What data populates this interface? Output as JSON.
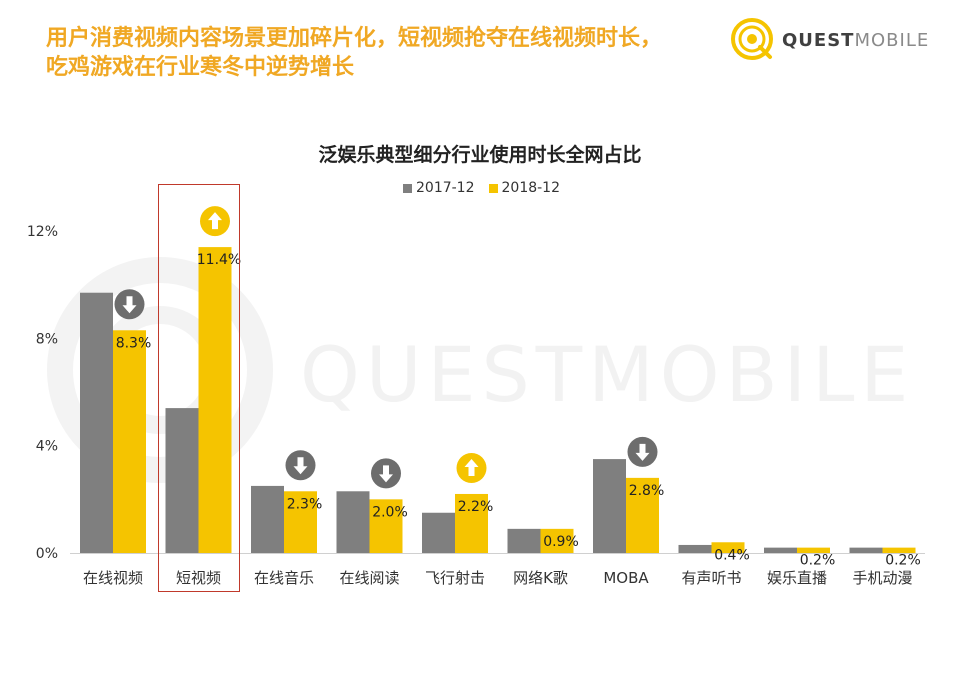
{
  "headline": {
    "line1": "用户消费视频内容场景更加碎片化，短视频抢夺在线视频时长，",
    "line2": "吃鸡游戏在行业寒冬中逆势增长"
  },
  "logo": {
    "part1": "QUEST",
    "part2": "MOBILE"
  },
  "watermark": "QUESTMOBILE",
  "colors": {
    "series_2017": "#7f7f7f",
    "series_2018": "#f5c400",
    "headline": "#f0a824",
    "down_badge": "#6d6d6d",
    "up_badge": "#f5c400",
    "highlight": "#c0392b"
  },
  "chart_data": {
    "type": "bar",
    "title": "泛娱乐典型细分行业使用时长全网占比",
    "categories": [
      "在线视频",
      "短视频",
      "在线音乐",
      "在线阅读",
      "飞行射击",
      "网络K歌",
      "MOBA",
      "有声听书",
      "娱乐直播",
      "手机动漫"
    ],
    "series": [
      {
        "name": "2017-12",
        "values": [
          9.7,
          5.4,
          2.5,
          2.3,
          1.5,
          0.9,
          3.5,
          0.3,
          0.2,
          0.2
        ]
      },
      {
        "name": "2018-12",
        "values": [
          8.3,
          11.4,
          2.3,
          2.0,
          2.2,
          0.9,
          2.8,
          0.4,
          0.2,
          0.2
        ]
      }
    ],
    "data_labels": [
      "8.3%",
      "11.4%",
      "2.3%",
      "2.0%",
      "2.2%",
      "0.9%",
      "2.8%",
      "0.4%",
      "0.2%",
      "0.2%"
    ],
    "trend_badges": [
      "down",
      "up",
      "down",
      "down",
      "up",
      "",
      "down",
      "",
      "",
      ""
    ],
    "highlighted_category": "短视频",
    "y_ticks": [
      "0%",
      "4%",
      "8%",
      "12%"
    ],
    "ylim": [
      0,
      12
    ],
    "legend_position": "top-center",
    "grid": false
  }
}
